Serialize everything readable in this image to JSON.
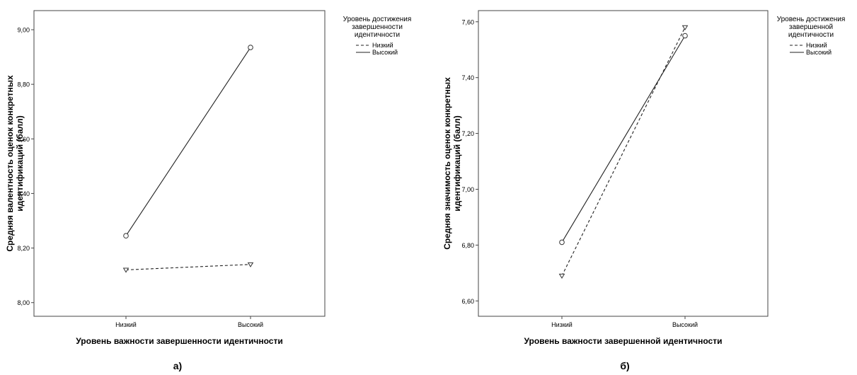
{
  "chart_data": [
    {
      "type": "line",
      "caption": "а)",
      "categories": [
        "Низкий",
        "Высокий"
      ],
      "xlabel": "Уровень важности завершенности идентичности",
      "ylabel": "Средняя валентность оценок конкретных идентификаций (балл)",
      "ylim": [
        7.95,
        9.07
      ],
      "yticks": [
        "8,00",
        "8,20",
        "8,40",
        "8,60",
        "8,80",
        "9,00"
      ],
      "ytick_values": [
        8.0,
        8.2,
        8.4,
        8.6,
        8.8,
        9.0
      ],
      "legend_title": "Уровень достижения завершенности идентичности",
      "legend_placement": "right",
      "grid": false,
      "series": [
        {
          "name": "Низкий",
          "values": [
            8.12,
            8.14
          ],
          "dash": true,
          "marker": "triangle"
        },
        {
          "name": "Высокий",
          "values": [
            8.245,
            8.935
          ],
          "dash": false,
          "marker": "circle"
        }
      ]
    },
    {
      "type": "line",
      "caption": "б)",
      "categories": [
        "Низкий",
        "Высокий"
      ],
      "xlabel": "Уровень важности завершенной идентичности",
      "ylabel": "Средняя значимость оценок конкретных идентификаций (балл)",
      "ylim": [
        6.545,
        7.64
      ],
      "yticks": [
        "6,60",
        "6,80",
        "7,00",
        "7,20",
        "7,40",
        "7,60"
      ],
      "ytick_values": [
        6.6,
        6.8,
        7.0,
        7.2,
        7.4,
        7.6
      ],
      "legend_title": "Уровень достижения завершенной идентичности",
      "legend_placement": "right",
      "grid": false,
      "series": [
        {
          "name": "Низкий",
          "values": [
            6.69,
            7.58
          ],
          "dash": true,
          "marker": "triangle"
        },
        {
          "name": "Высокий",
          "values": [
            6.81,
            7.55
          ],
          "dash": false,
          "marker": "circle"
        }
      ]
    }
  ]
}
